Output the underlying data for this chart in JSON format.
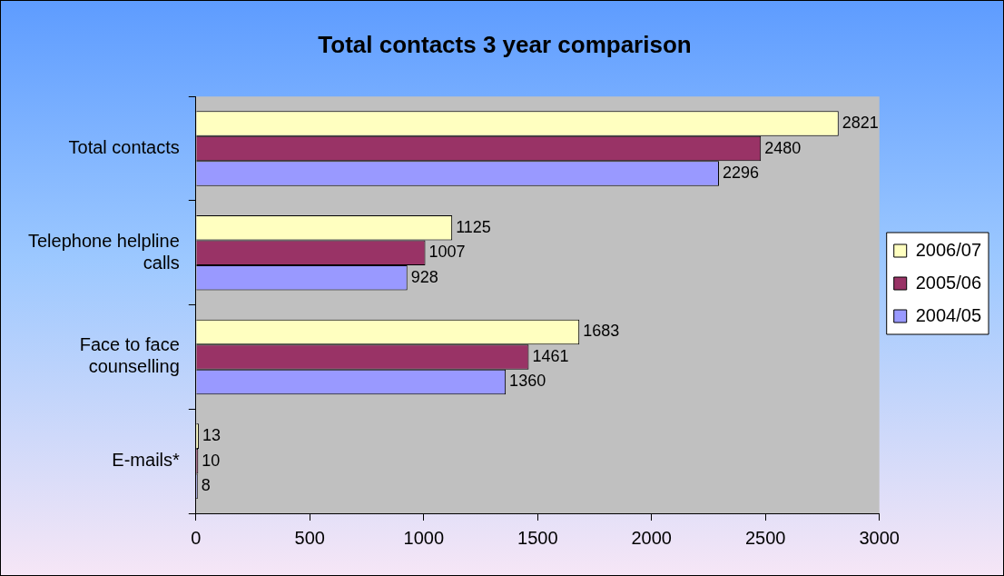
{
  "chart_data": {
    "type": "bar",
    "orientation": "horizontal",
    "title": "Total contacts 3 year comparison",
    "categories": [
      "Total contacts",
      "Telephone helpline calls",
      "Face to face counselling",
      "E-mails*"
    ],
    "series": [
      {
        "name": "2006/07",
        "color": "#ffffc0",
        "values": [
          2821,
          1125,
          1683,
          13
        ]
      },
      {
        "name": "2005/06",
        "color": "#993366",
        "values": [
          2480,
          1007,
          1461,
          10
        ]
      },
      {
        "name": "2004/05",
        "color": "#9999ff",
        "values": [
          2296,
          928,
          1360,
          8
        ]
      }
    ],
    "xlim": [
      0,
      3000
    ],
    "xticks": [
      0,
      500,
      1000,
      1500,
      2000,
      2500,
      3000
    ],
    "data_labels": true,
    "grid": false,
    "legend": "right"
  }
}
